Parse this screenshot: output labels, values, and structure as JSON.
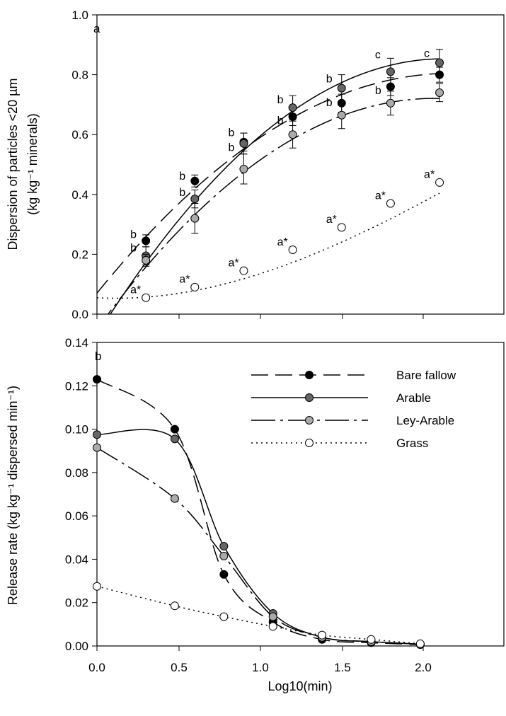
{
  "chart_data": [
    {
      "type": "scatter",
      "panel_label": "a",
      "ylabel": "Dispersion of particles <20 µm",
      "ylabel_line2": "(kg kg⁻¹ minerals)",
      "xlim": [
        0,
        2.3
      ],
      "ylim": [
        0,
        1.0
      ],
      "yticks": [
        "0.0",
        "0.2",
        "0.4",
        "0.6",
        "0.8",
        "1.0"
      ],
      "x": [
        0.3,
        0.6,
        0.9,
        1.2,
        1.5,
        1.8,
        2.1
      ],
      "series": [
        {
          "name": "Bare fallow",
          "fill": "#000000",
          "dash": "24 10",
          "values": [
            0.245,
            0.445,
            0.575,
            0.66,
            0.705,
            0.76,
            0.8
          ],
          "errors": [
            0.02,
            0.02,
            0.03,
            0.03,
            0.03,
            0.03,
            0.025
          ],
          "fit": [
            0.07,
            0.675,
            -0.155
          ]
        },
        {
          "name": "Arable",
          "fill": "#666666",
          "dash": "",
          "values": [
            0.195,
            0.385,
            0.57,
            0.69,
            0.755,
            0.81,
            0.84
          ],
          "errors": [
            0.03,
            0.03,
            0.035,
            0.04,
            0.045,
            0.045,
            0.045
          ],
          "fit": [
            -0.07,
            0.87,
            -0.205
          ]
        },
        {
          "name": "Ley-Arable",
          "fill": "#aaaaaa",
          "dash": "34 7 4 7",
          "values": [
            0.18,
            0.32,
            0.485,
            0.6,
            0.665,
            0.705,
            0.74
          ],
          "errors": [
            0.02,
            0.05,
            0.05,
            0.045,
            0.045,
            0.04,
            0.03
          ],
          "fit": [
            -0.05,
            0.745,
            -0.18
          ]
        },
        {
          "name": "Grass",
          "fill": "#ffffff",
          "dash": "2 5",
          "values": [
            0.055,
            0.09,
            0.145,
            0.215,
            0.29,
            0.37,
            0.44
          ],
          "errors": [
            0,
            0,
            0,
            0,
            0,
            0,
            0
          ],
          "fit": [
            0.055,
            -0.03,
            0.125,
            -0.015
          ]
        }
      ],
      "significance_labels": [
        {
          "x": 0.3,
          "text": "b",
          "above": 0.25
        },
        {
          "x": 0.3,
          "text": "b",
          "above": 0.205
        },
        {
          "x": 0.6,
          "text": "b",
          "above": 0.445
        },
        {
          "x": 0.6,
          "text": "b",
          "above": 0.39
        },
        {
          "x": 0.9,
          "text": "b",
          "above": 0.59
        },
        {
          "x": 0.9,
          "text": "b",
          "above": 0.54
        },
        {
          "x": 1.2,
          "text": "b",
          "above": 0.7
        },
        {
          "x": 1.2,
          "text": "b",
          "above": 0.63
        },
        {
          "x": 1.5,
          "text": "b",
          "above": 0.77
        },
        {
          "x": 1.5,
          "text": "b",
          "above": 0.69
        },
        {
          "x": 1.8,
          "text": "c",
          "above": 0.85
        },
        {
          "x": 1.8,
          "text": "b",
          "above": 0.73
        },
        {
          "x": 2.1,
          "text": "c",
          "above": 0.855
        },
        {
          "x": 0.3,
          "text": "a*",
          "above": 0.065
        },
        {
          "x": 0.6,
          "text": "a*",
          "above": 0.1
        },
        {
          "x": 0.9,
          "text": "a*",
          "above": 0.155
        },
        {
          "x": 1.2,
          "text": "a*",
          "above": 0.225
        },
        {
          "x": 1.5,
          "text": "a*",
          "above": 0.3
        },
        {
          "x": 1.8,
          "text": "a*",
          "above": 0.38
        },
        {
          "x": 2.1,
          "text": "a*",
          "above": 0.45
        }
      ]
    },
    {
      "type": "line",
      "panel_label": "b",
      "xlabel": "Log10(min)",
      "ylabel": "Release rate (kg kg⁻¹ dispersed min⁻¹)",
      "xlim": [
        -0.05,
        2.3
      ],
      "ylim": [
        0,
        0.14
      ],
      "xticks": [
        "0.0",
        "0.5",
        "1.0",
        "1.5",
        "2.0"
      ],
      "yticks": [
        "0.00",
        "0.02",
        "0.04",
        "0.06",
        "0.08",
        "0.10",
        "0.12",
        "0.14"
      ],
      "legend_position": "top-right",
      "x": [
        0.0,
        0.477,
        0.778,
        1.079,
        1.38,
        1.681,
        1.982
      ],
      "series": [
        {
          "name": "Bare fallow",
          "fill": "#000000",
          "dash": "24 10",
          "values": [
            0.123,
            0.1,
            0.033,
            0.011,
            0.003,
            0.0015,
            0.0006
          ]
        },
        {
          "name": "Arable",
          "fill": "#666666",
          "dash": "",
          "values": [
            0.0975,
            0.0955,
            0.046,
            0.015,
            0.004,
            0.002,
            0.0008
          ]
        },
        {
          "name": "Ley-Arable",
          "fill": "#aaaaaa",
          "dash": "34 7 4 7",
          "values": [
            0.0915,
            0.068,
            0.0415,
            0.0135,
            0.004,
            0.002,
            0.0008
          ]
        },
        {
          "name": "Grass",
          "fill": "#ffffff",
          "dash": "2 5",
          "values": [
            0.0275,
            0.0185,
            0.0135,
            0.009,
            0.005,
            0.003,
            0.001
          ]
        }
      ]
    }
  ]
}
